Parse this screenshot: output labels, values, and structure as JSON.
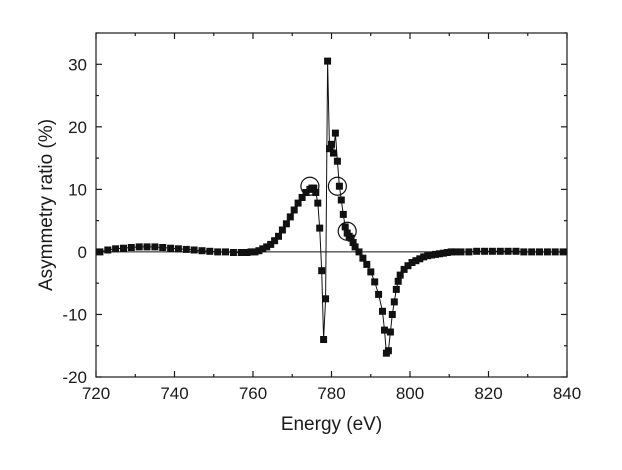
{
  "chart_data": {
    "type": "scatter",
    "title": "",
    "xlabel": "Energy (eV)",
    "ylabel": "Asymmetry ratio (%)",
    "xlim": [
      720,
      840
    ],
    "ylim": [
      -20,
      35
    ],
    "xticks": [
      720,
      740,
      760,
      780,
      800,
      820,
      840
    ],
    "yticks": [
      -20,
      -10,
      0,
      10,
      20,
      30
    ],
    "grid": false,
    "zero_line": true,
    "series": [
      {
        "name": "Asymmetry ratio",
        "marker": "square",
        "connected": true,
        "x": [
          721.0,
          723.0,
          725.0,
          727.0,
          729.0,
          731.0,
          733.0,
          735.0,
          737.0,
          739.0,
          741.0,
          743.0,
          745.0,
          747.0,
          749.0,
          751.0,
          753.0,
          755.0,
          757.0,
          758.5,
          759.5,
          760.5,
          761.5,
          762.5,
          763.5,
          764.5,
          765.5,
          766.5,
          767.5,
          768.5,
          769.5,
          770.5,
          771.5,
          772.5,
          773.5,
          774.5,
          775.0,
          775.5,
          776.0,
          776.5,
          777.0,
          777.5,
          778.0,
          778.5,
          779.0,
          779.5,
          780.0,
          780.5,
          781.0,
          781.5,
          782.0,
          782.5,
          783.0,
          783.5,
          784.0,
          784.5,
          785.0,
          785.5,
          786.0,
          787.0,
          788.0,
          789.0,
          790.0,
          791.0,
          792.0,
          793.0,
          793.5,
          794.0,
          794.5,
          795.0,
          795.5,
          796.0,
          796.5,
          797.0,
          797.5,
          798.5,
          799.5,
          800.5,
          801.5,
          802.5,
          803.5,
          804.5,
          805.5,
          806.5,
          807.5,
          808.5,
          809.5,
          810.5,
          811.5,
          813.0,
          815.0,
          817.0,
          819.0,
          821.0,
          823.0,
          825.0,
          827.0,
          829.0,
          831.0,
          833.0,
          835.0,
          837.0,
          839.0
        ],
        "y": [
          0.0,
          0.3,
          0.5,
          0.6,
          0.7,
          0.8,
          0.8,
          0.8,
          0.7,
          0.6,
          0.5,
          0.4,
          0.3,
          0.2,
          0.1,
          0.0,
          0.0,
          -0.1,
          -0.1,
          -0.1,
          0.0,
          0.0,
          0.2,
          0.5,
          0.8,
          1.2,
          1.8,
          2.5,
          3.5,
          4.5,
          5.6,
          6.7,
          7.8,
          8.7,
          9.5,
          10.0,
          10.2,
          10.2,
          9.5,
          7.8,
          3.8,
          -3.0,
          -14.0,
          -7.5,
          30.5,
          16.5,
          17.2,
          15.8,
          19.0,
          14.5,
          10.5,
          8.3,
          6.0,
          4.0,
          3.0,
          2.5,
          2.2,
          1.5,
          0.8,
          0.0,
          -1.0,
          -2.0,
          -3.2,
          -4.8,
          -6.8,
          -9.5,
          -12.5,
          -16.2,
          -15.8,
          -12.8,
          -10.0,
          -8.0,
          -6.0,
          -4.7,
          -3.7,
          -2.8,
          -2.2,
          -1.7,
          -1.4,
          -1.1,
          -0.8,
          -0.6,
          -0.5,
          -0.4,
          -0.3,
          -0.2,
          -0.1,
          0.0,
          0.0,
          0.0,
          0.0,
          0.1,
          0.1,
          0.1,
          0.1,
          0.1,
          0.1,
          0.0,
          0.0,
          0.0,
          0.0,
          0.0,
          0.0
        ]
      }
    ],
    "annotations": [
      {
        "type": "circle",
        "x": 774.5,
        "y": 10.5
      },
      {
        "type": "circle",
        "x": 781.5,
        "y": 10.5
      },
      {
        "type": "circle",
        "x": 784.0,
        "y": 3.3
      }
    ]
  }
}
